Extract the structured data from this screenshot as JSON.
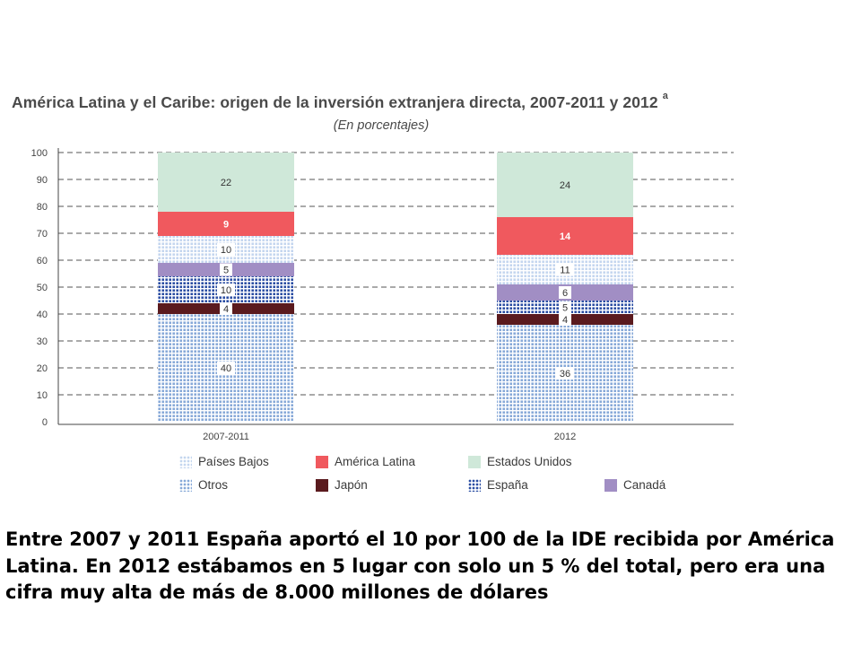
{
  "chart_data": {
    "type": "bar",
    "stacked": true,
    "title": "América Latina y el Caribe: origen de la inversión extranjera directa, 2007-2011 y 2012",
    "title_footnote": "a",
    "subtitle": "(En porcentajes)",
    "xlabel": "",
    "ylabel": "",
    "ylim": [
      0,
      100
    ],
    "yticks": [
      0,
      10,
      20,
      30,
      40,
      50,
      60,
      70,
      80,
      90,
      100
    ],
    "grid": "dashed",
    "legend_position": "bottom",
    "categories": [
      "2007-2011",
      "2012"
    ],
    "series": [
      {
        "name": "Otros",
        "values": [
          40,
          36
        ],
        "color": "#87a9d8",
        "pattern": "dotted",
        "label_style": "light"
      },
      {
        "name": "Japón",
        "values": [
          4,
          4
        ],
        "color": "#5a1a1e",
        "pattern": "solid",
        "label_style": "light"
      },
      {
        "name": "España",
        "values": [
          10,
          5
        ],
        "color": "#2b4ea3",
        "pattern": "dotted",
        "label_style": "light"
      },
      {
        "name": "Canadá",
        "values": [
          5,
          6
        ],
        "color": "#a18ec4",
        "pattern": "solid",
        "label_style": "light"
      },
      {
        "name": "Países Bajos",
        "values": [
          10,
          11
        ],
        "color": "#c4d6ef",
        "pattern": "dotted",
        "label_style": "light"
      },
      {
        "name": "América Latina",
        "values": [
          9,
          14
        ],
        "color": "#f0595e",
        "pattern": "solid",
        "label_style": "bold"
      },
      {
        "name": "Estados Unidos",
        "values": [
          22,
          24
        ],
        "color": "#cfe8d9",
        "pattern": "solid",
        "label_style": "plain"
      }
    ],
    "legend_rows": [
      [
        "Países Bajos",
        "América Latina",
        "Estados Unidos"
      ],
      [
        "Otros",
        "Japón",
        "España",
        "Canadá"
      ]
    ]
  },
  "caption": "Entre 2007 y 2011 España aportó el 10 por 100 de la IDE recibida por América Latina. En 2012 estábamos en 5 lugar con solo un 5 % del total, pero era una cifra muy alta de más de 8.000 millones de dólares"
}
